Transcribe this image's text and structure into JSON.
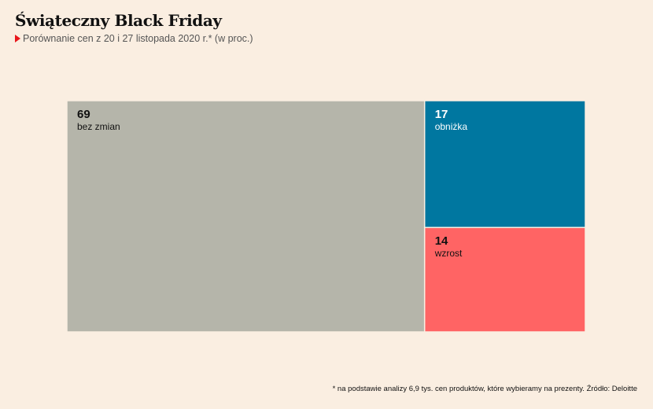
{
  "header": {
    "title": "Świąteczny Black Friday",
    "subtitle": "Porównanie cen z 20 i 27 listopada 2020 r.* (w proc.)"
  },
  "chart_data": {
    "type": "treemap",
    "title": "Świąteczny Black Friday",
    "subtitle": "Porównanie cen z 20 i 27 listopada 2020 r.* (w proc.)",
    "unit": "%",
    "series": [
      {
        "name": "bez zmian",
        "value": 69,
        "color": "#b5b5aa",
        "text_color": "#111111"
      },
      {
        "name": "obniżka",
        "value": 17,
        "color": "#0077a0",
        "text_color": "#ffffff"
      },
      {
        "name": "wzrost",
        "value": 14,
        "color": "#ff6464",
        "text_color": "#111111"
      }
    ]
  },
  "footnote": "* na podstawie analizy 6,9 tys. cen produktów, które wybieramy na prezenty. Źródło: Deloitte"
}
